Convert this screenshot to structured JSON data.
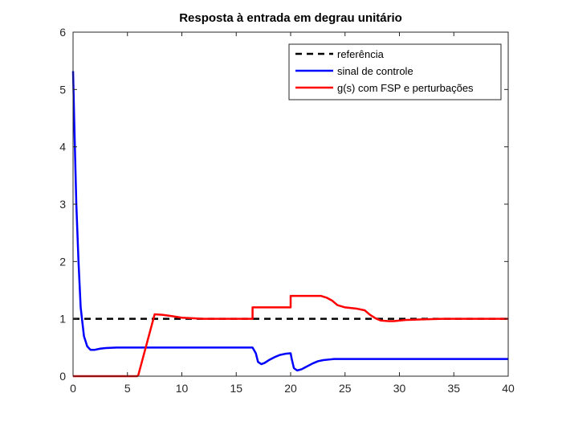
{
  "chart_data": {
    "type": "line",
    "title": "Resposta à entrada em degrau unitário",
    "xlabel": "",
    "ylabel": "",
    "xlim": [
      0,
      40
    ],
    "ylim": [
      0,
      6
    ],
    "xticks": [
      0,
      5,
      10,
      15,
      20,
      25,
      30,
      35,
      40
    ],
    "yticks": [
      0,
      1,
      2,
      3,
      4,
      5,
      6
    ],
    "grid": false,
    "legend_position": "top-right",
    "series": [
      {
        "name": "referência",
        "color": "#000000",
        "style": "dashed",
        "x": [
          0,
          40
        ],
        "y": [
          1,
          1
        ]
      },
      {
        "name": "sinal de controle",
        "color": "#0000ff",
        "style": "solid",
        "x": [
          0,
          0.1,
          0.3,
          0.5,
          0.7,
          1.0,
          1.3,
          1.6,
          2.0,
          2.5,
          3,
          4,
          5,
          6,
          8,
          10,
          12,
          14,
          16,
          16.5,
          16.8,
          17.0,
          17.3,
          17.6,
          18.0,
          18.5,
          19.0,
          19.5,
          20.0,
          20.1,
          20.3,
          20.6,
          21.0,
          21.5,
          22.0,
          22.5,
          23.0,
          23.5,
          24.0,
          25,
          26,
          28,
          30,
          35,
          40
        ],
        "y": [
          5.32,
          4.5,
          3.0,
          2.0,
          1.2,
          0.7,
          0.52,
          0.46,
          0.46,
          0.48,
          0.49,
          0.5,
          0.5,
          0.5,
          0.5,
          0.5,
          0.5,
          0.5,
          0.5,
          0.5,
          0.4,
          0.25,
          0.21,
          0.23,
          0.28,
          0.33,
          0.37,
          0.39,
          0.4,
          0.3,
          0.14,
          0.1,
          0.12,
          0.17,
          0.22,
          0.26,
          0.28,
          0.29,
          0.3,
          0.3,
          0.3,
          0.3,
          0.3,
          0.3,
          0.3
        ]
      },
      {
        "name": "g(s) com FSP e perturbações",
        "color": "#ff0000",
        "style": "solid",
        "x": [
          0,
          5.9,
          6.0,
          7.5,
          8.2,
          9.0,
          10.0,
          12,
          14,
          16,
          16.5,
          16.5,
          20.0,
          20.0,
          22.8,
          23.3,
          23.8,
          24.3,
          25,
          26,
          26.8,
          27.3,
          27.8,
          28.3,
          29.0,
          29.5,
          30.5,
          32,
          34,
          36,
          40
        ],
        "y": [
          0,
          0,
          0.02,
          1.08,
          1.07,
          1.05,
          1.02,
          1.0,
          1.0,
          1.0,
          1.0,
          1.2,
          1.2,
          1.4,
          1.4,
          1.37,
          1.32,
          1.24,
          1.2,
          1.18,
          1.15,
          1.07,
          1.01,
          0.97,
          0.96,
          0.96,
          0.98,
          0.99,
          1.0,
          1.0,
          1.0
        ]
      }
    ]
  }
}
